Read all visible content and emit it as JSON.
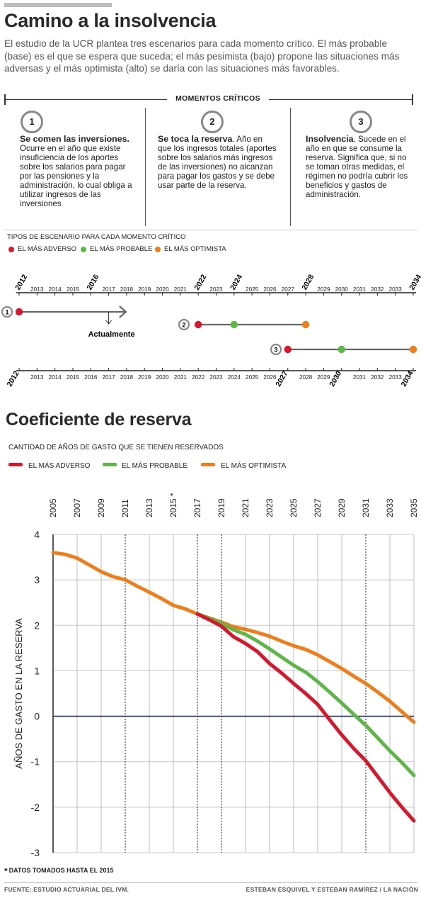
{
  "header": {
    "title": "Camino a la insolvencia",
    "intro": "El estudio de la UCR plantea tres escenarios para cada momento crítico. El más probable (base) es el que se espera que suceda; el más pesimista (bajo) propone las situaciones más adversas y el más optimista (alto) se daría con las situaciones más favorables."
  },
  "moments": {
    "section_title": "MOMENTOS CRÍTICOS",
    "items": [
      {
        "number": "1",
        "bold": "Se comen las inversiones.",
        "text": " Ocurre en el año que existe insuficiencia de los aportes sobre los salarios para pagar por las pensiones y la administración, lo cual obliga a utilizar ingresos de las inversiones"
      },
      {
        "number": "2",
        "bold": "Se toca la reserva",
        "text": ". Año en que los ingresos totales (aportes sobre los salarios más ingresos de las inversiones) no alcanzan para pagar los gastos y se debe usar parte de la reserva."
      },
      {
        "number": "3",
        "bold": "Insolvencia",
        "text": ". Sucede en el año en que se consume la reserva. Significa que, si no se toman otras medidas, el régimen no podría cubrir los beneficios y gastos de administración."
      }
    ]
  },
  "scenario_legend": {
    "title": "TIPOS DE ESCENARIO PARA CADA MOMENTO CRÍTICO",
    "items": [
      "EL MÁS ADVERSO",
      "EL MÁS PROBABLE",
      "EL MÁS OPTIMISTA"
    ]
  },
  "colors": {
    "adverso": "#d7172d",
    "probable": "#5db647",
    "optimista": "#ef7d1b",
    "zero_line": "#1f2f6e",
    "circle_border": "#888888"
  },
  "timeline": {
    "years": [
      "2012",
      "2013",
      "2014",
      "2015",
      "2016",
      "2017",
      "2018",
      "2019",
      "2020",
      "2021",
      "2022",
      "2023",
      "2024",
      "2025",
      "2026",
      "2027",
      "2028",
      "2029",
      "2030",
      "2031",
      "2032",
      "2033",
      "2034"
    ],
    "top_bold_years": [
      "2012",
      "2016",
      "2022",
      "2024",
      "2028",
      "2034"
    ],
    "bottom_bold_years": [
      "2012",
      "2027",
      "2030",
      "2034"
    ],
    "annotation": "Actualmente",
    "current_year": 2017,
    "rows": [
      {
        "moment": "1",
        "adverso": 2012,
        "arrow_to": 2018
      },
      {
        "moment": "2",
        "adverso": 2022,
        "probable": 2024,
        "optimista": 2028
      },
      {
        "moment": "3",
        "adverso": 2027,
        "probable": 2030,
        "optimista": 2034
      }
    ]
  },
  "reserve": {
    "title": "Coeficiente de reserva",
    "subtitle": "CANTIDAD DE AÑOS DE GASTO QUE SE TIENEN RESERVADOS",
    "legend": [
      "EL MÁS ADVERSO",
      "EL MÁS PROBABLE",
      "EL MÁS OPTIMISTA"
    ],
    "footnote_mark": "*",
    "footnote": "DATOS TOMADOS HASTA EL 2015"
  },
  "chart_data": {
    "type": "line",
    "title": "Coeficiente de reserva",
    "subtitle": "CANTIDAD DE AÑOS DE GASTO QUE SE TIENEN RESERVADOS",
    "xlabel": "",
    "ylabel": "AÑOS DE GASTO EN LA RESERVA",
    "xlim": [
      2005,
      2035
    ],
    "ylim": [
      -3,
      4
    ],
    "x_ticks": [
      "2005",
      "2007",
      "2009",
      "2011",
      "2013",
      "2015 *",
      "2017",
      "2019",
      "2021",
      "2023",
      "2025",
      "2027",
      "2029",
      "2031",
      "2033",
      "2035"
    ],
    "y_ticks": [
      "4",
      "3",
      "2",
      "1",
      "0",
      "-1",
      "-2",
      "-3"
    ],
    "grid": true,
    "dashed_vertical_years": [
      2011,
      2017,
      2019,
      2031
    ],
    "zero_line": true,
    "series": [
      {
        "name": "EL MÁS OPTIMISTA",
        "color": "#ef7d1b",
        "x": [
          2005,
          2006,
          2007,
          2008,
          2009,
          2010,
          2011,
          2012,
          2013,
          2014,
          2015,
          2016,
          2017,
          2018,
          2019,
          2020,
          2021,
          2022,
          2023,
          2024,
          2025,
          2026,
          2027,
          2028,
          2029,
          2030,
          2031,
          2032,
          2033,
          2034,
          2035
        ],
        "values": [
          3.6,
          3.56,
          3.48,
          3.33,
          3.18,
          3.07,
          3.0,
          2.86,
          2.73,
          2.59,
          2.44,
          2.36,
          2.25,
          2.16,
          2.07,
          1.97,
          1.91,
          1.84,
          1.76,
          1.65,
          1.55,
          1.47,
          1.35,
          1.2,
          1.05,
          0.88,
          0.72,
          0.53,
          0.33,
          0.1,
          -0.13
        ]
      },
      {
        "name": "EL MÁS PROBABLE",
        "color": "#5db647",
        "x": [
          2017,
          2018,
          2019,
          2020,
          2021,
          2022,
          2023,
          2024,
          2025,
          2026,
          2027,
          2028,
          2029,
          2030,
          2031,
          2032,
          2033,
          2034,
          2035
        ],
        "values": [
          2.25,
          2.15,
          2.04,
          1.9,
          1.8,
          1.65,
          1.48,
          1.3,
          1.12,
          0.97,
          0.76,
          0.53,
          0.29,
          0.04,
          -0.2,
          -0.48,
          -0.76,
          -1.02,
          -1.3
        ]
      },
      {
        "name": "EL MÁS ADVERSO",
        "color": "#d7172d",
        "x": [
          2017,
          2018,
          2019,
          2020,
          2021,
          2022,
          2023,
          2024,
          2025,
          2026,
          2027,
          2028,
          2029,
          2030,
          2031,
          2032,
          2033,
          2034,
          2035
        ],
        "values": [
          2.25,
          2.12,
          1.98,
          1.75,
          1.6,
          1.42,
          1.16,
          0.95,
          0.72,
          0.5,
          0.26,
          -0.08,
          -0.41,
          -0.71,
          -0.98,
          -1.33,
          -1.68,
          -2.0,
          -2.3
        ]
      }
    ]
  },
  "footer": {
    "source": "FUENTE: ESTUDIO ACTUARIAL DEL IVM.",
    "credits": "ESTEBAN ESQUIVEL Y ESTEBAN RAMÍREZ / LA NACIÓN"
  }
}
